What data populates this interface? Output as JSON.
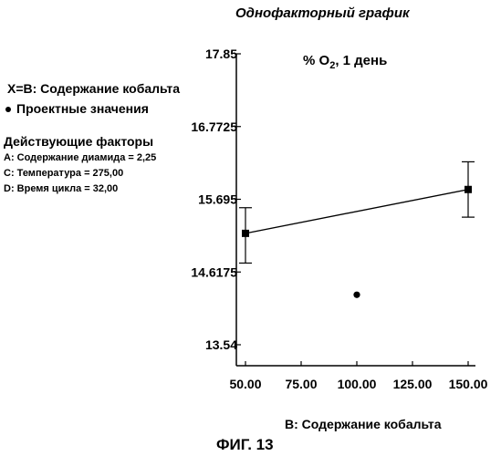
{
  "chart_title": "Однофакторный график",
  "legend": {
    "x_factor": "X=B: Содержание кобальта",
    "design_points": "Проектные значения",
    "actual_factors_title": "Действующие факторы",
    "actual_factors": [
      "A: Содержание диамида = 2,25",
      "C: Температура = 275,00",
      "D: Время цикла = 32,00"
    ]
  },
  "annotation": {
    "main": "% O",
    "sub": "2",
    "suffix": ", 1 день"
  },
  "x_axis_label": "B: Содержание кобальта",
  "figure_caption": "ФИГ. 13",
  "chart_data": {
    "type": "line",
    "x": [
      50,
      150
    ],
    "series": [
      {
        "values": [
          15.19,
          15.84
        ],
        "error_low": [
          14.75,
          15.43
        ],
        "error_high": [
          15.57,
          16.25
        ]
      }
    ],
    "design_points": [
      {
        "x": 100,
        "y": 14.28
      }
    ],
    "xlim": [
      50,
      150
    ],
    "ylim": [
      13.54,
      17.85
    ],
    "x_ticks": [
      "50.00",
      "75.00",
      "100.00",
      "125.00",
      "150.00"
    ],
    "y_ticks": [
      "13.54",
      "14.6175",
      "15.695",
      "16.7725",
      "17.85"
    ],
    "y_tick_values": [
      13.54,
      14.6175,
      15.695,
      16.7725,
      17.85
    ],
    "x_tick_values": [
      50,
      75,
      100,
      125,
      150
    ],
    "grid": false
  }
}
